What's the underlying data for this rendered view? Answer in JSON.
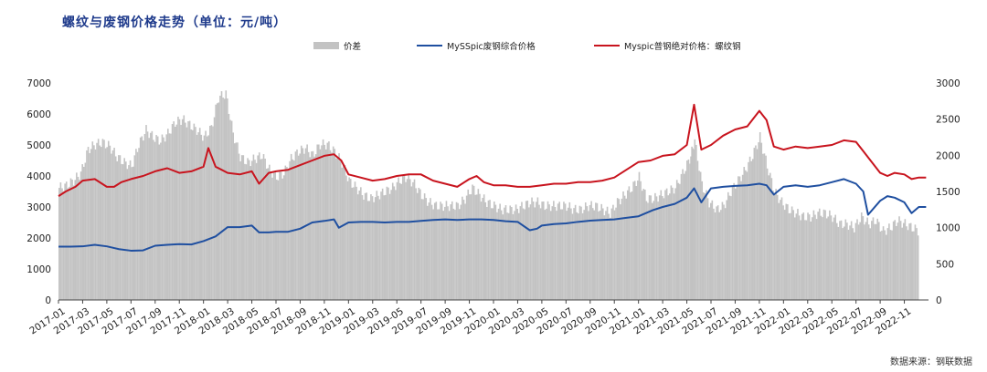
{
  "chart_data": {
    "type": "bar",
    "title": "螺纹与废钢价格走势（单位：元/吨）",
    "source": "数据来源：钢联数据",
    "x_ticks": [
      "2017-01",
      "2017-03",
      "2017-05",
      "2017-07",
      "2017-09",
      "2017-11",
      "2018-01",
      "2018-03",
      "2018-05",
      "2018-07",
      "2018-09",
      "2018-11",
      "2019-01",
      "2019-03",
      "2019-05",
      "2019-07",
      "2019-09",
      "2019-11",
      "2020-01",
      "2020-03",
      "2020-05",
      "2020-07",
      "2020-09",
      "2020-11",
      "2021-01",
      "2021-03",
      "2021-05",
      "2021-07",
      "2021-09",
      "2021-11",
      "2022-01",
      "2022-03",
      "2022-05",
      "2022-07",
      "2022-09",
      "2022-11"
    ],
    "left_axis": {
      "ylim": [
        0,
        7000
      ],
      "ticks": [
        0,
        1000,
        2000,
        3000,
        4000,
        5000,
        6000,
        7000
      ]
    },
    "right_axis": {
      "ylim": [
        0,
        3000
      ],
      "ticks": [
        0,
        500,
        1000,
        1500,
        2000,
        2500,
        3000
      ]
    },
    "legend_placement": "top",
    "series": [
      {
        "name": "价差",
        "kind": "bar",
        "axis": "right",
        "color": "#c3c3c3",
        "points": [
          [
            0,
            1550
          ],
          [
            0.3,
            1580
          ],
          [
            0.6,
            1650
          ],
          [
            0.9,
            1750
          ],
          [
            1.2,
            2080
          ],
          [
            1.5,
            2150
          ],
          [
            1.8,
            2180
          ],
          [
            2.1,
            2120
          ],
          [
            2.4,
            1980
          ],
          [
            2.7,
            1900
          ],
          [
            3.0,
            1850
          ],
          [
            3.3,
            2150
          ],
          [
            3.6,
            2350
          ],
          [
            3.9,
            2250
          ],
          [
            4.2,
            2200
          ],
          [
            4.5,
            2300
          ],
          [
            4.8,
            2450
          ],
          [
            5.1,
            2500
          ],
          [
            5.4,
            2420
          ],
          [
            5.7,
            2350
          ],
          [
            6.0,
            2250
          ],
          [
            6.3,
            2380
          ],
          [
            6.6,
            2800
          ],
          [
            6.9,
            2850
          ],
          [
            7.2,
            2300
          ],
          [
            7.5,
            1980
          ],
          [
            7.8,
            1900
          ],
          [
            8.1,
            1950
          ],
          [
            8.4,
            2000
          ],
          [
            8.7,
            1800
          ],
          [
            9.0,
            1700
          ],
          [
            9.3,
            1750
          ],
          [
            9.6,
            1950
          ],
          [
            9.9,
            2050
          ],
          [
            10.2,
            2100
          ],
          [
            10.5,
            2000
          ],
          [
            10.8,
            2150
          ],
          [
            11.1,
            2150
          ],
          [
            11.4,
            2050
          ],
          [
            11.7,
            1900
          ],
          [
            12.0,
            1650
          ],
          [
            12.3,
            1550
          ],
          [
            12.6,
            1450
          ],
          [
            12.9,
            1400
          ],
          [
            13.2,
            1450
          ],
          [
            13.5,
            1500
          ],
          [
            13.8,
            1550
          ],
          [
            14.1,
            1650
          ],
          [
            14.4,
            1700
          ],
          [
            14.7,
            1600
          ],
          [
            15.0,
            1450
          ],
          [
            15.3,
            1350
          ],
          [
            15.6,
            1300
          ],
          [
            15.9,
            1300
          ],
          [
            16.2,
            1300
          ],
          [
            16.5,
            1300
          ],
          [
            16.8,
            1400
          ],
          [
            17.1,
            1550
          ],
          [
            17.4,
            1450
          ],
          [
            17.7,
            1350
          ],
          [
            18.0,
            1300
          ],
          [
            18.3,
            1250
          ],
          [
            18.6,
            1250
          ],
          [
            18.9,
            1250
          ],
          [
            19.2,
            1300
          ],
          [
            19.5,
            1350
          ],
          [
            19.8,
            1350
          ],
          [
            20.1,
            1300
          ],
          [
            20.4,
            1300
          ],
          [
            20.7,
            1300
          ],
          [
            21.0,
            1300
          ],
          [
            21.3,
            1250
          ],
          [
            21.6,
            1250
          ],
          [
            21.9,
            1300
          ],
          [
            22.2,
            1300
          ],
          [
            22.5,
            1250
          ],
          [
            22.8,
            1200
          ],
          [
            23.1,
            1350
          ],
          [
            23.4,
            1450
          ],
          [
            23.7,
            1550
          ],
          [
            24.0,
            1700
          ],
          [
            24.3,
            1400
          ],
          [
            24.6,
            1400
          ],
          [
            24.9,
            1450
          ],
          [
            25.2,
            1500
          ],
          [
            25.5,
            1550
          ],
          [
            25.8,
            1750
          ],
          [
            26.1,
            1950
          ],
          [
            26.3,
            2200
          ],
          [
            26.6,
            1600
          ],
          [
            26.9,
            1350
          ],
          [
            27.2,
            1250
          ],
          [
            27.5,
            1300
          ],
          [
            27.8,
            1500
          ],
          [
            28.1,
            1650
          ],
          [
            28.4,
            1800
          ],
          [
            28.7,
            2000
          ],
          [
            29.0,
            2250
          ],
          [
            29.3,
            1850
          ],
          [
            29.6,
            1500
          ],
          [
            29.9,
            1350
          ],
          [
            30.2,
            1250
          ],
          [
            30.5,
            1200
          ],
          [
            30.8,
            1150
          ],
          [
            31.1,
            1150
          ],
          [
            31.4,
            1200
          ],
          [
            31.7,
            1200
          ],
          [
            32.0,
            1150
          ],
          [
            32.3,
            1050
          ],
          [
            32.6,
            1050
          ],
          [
            32.9,
            1000
          ],
          [
            33.2,
            1150
          ],
          [
            33.5,
            1050
          ],
          [
            33.8,
            1100
          ],
          [
            34.1,
            950
          ],
          [
            34.4,
            1000
          ],
          [
            34.7,
            1100
          ],
          [
            35.0,
            1050
          ],
          [
            35.3,
            1000
          ],
          [
            35.6,
            950
          ]
        ]
      },
      {
        "name": "MySSpic废钢综合价格",
        "kind": "line",
        "axis": "left",
        "color": "#1f4fa0",
        "points": [
          [
            0,
            1720
          ],
          [
            0.5,
            1720
          ],
          [
            1,
            1730
          ],
          [
            1.5,
            1780
          ],
          [
            2,
            1730
          ],
          [
            2.5,
            1640
          ],
          [
            3,
            1590
          ],
          [
            3.5,
            1600
          ],
          [
            4,
            1750
          ],
          [
            4.5,
            1780
          ],
          [
            5,
            1800
          ],
          [
            5.5,
            1790
          ],
          [
            6,
            1900
          ],
          [
            6.5,
            2050
          ],
          [
            7,
            2350
          ],
          [
            7.5,
            2350
          ],
          [
            8,
            2400
          ],
          [
            8.3,
            2180
          ],
          [
            8.7,
            2180
          ],
          [
            9,
            2200
          ],
          [
            9.5,
            2200
          ],
          [
            10,
            2300
          ],
          [
            10.5,
            2500
          ],
          [
            11,
            2550
          ],
          [
            11.4,
            2600
          ],
          [
            11.6,
            2330
          ],
          [
            12,
            2500
          ],
          [
            12.5,
            2520
          ],
          [
            13,
            2520
          ],
          [
            13.5,
            2500
          ],
          [
            14,
            2520
          ],
          [
            14.5,
            2520
          ],
          [
            15,
            2550
          ],
          [
            15.5,
            2580
          ],
          [
            16,
            2600
          ],
          [
            16.5,
            2580
          ],
          [
            17,
            2600
          ],
          [
            17.5,
            2600
          ],
          [
            18,
            2580
          ],
          [
            18.5,
            2540
          ],
          [
            19,
            2520
          ],
          [
            19.5,
            2250
          ],
          [
            19.8,
            2300
          ],
          [
            20,
            2400
          ],
          [
            20.5,
            2450
          ],
          [
            21,
            2470
          ],
          [
            21.5,
            2520
          ],
          [
            22,
            2560
          ],
          [
            22.5,
            2580
          ],
          [
            23,
            2600
          ],
          [
            23.5,
            2650
          ],
          [
            24,
            2700
          ],
          [
            24.3,
            2800
          ],
          [
            24.6,
            2900
          ],
          [
            25,
            3000
          ],
          [
            25.5,
            3100
          ],
          [
            26,
            3300
          ],
          [
            26.3,
            3600
          ],
          [
            26.6,
            3150
          ],
          [
            27,
            3600
          ],
          [
            27.5,
            3650
          ],
          [
            28,
            3680
          ],
          [
            28.5,
            3700
          ],
          [
            29,
            3750
          ],
          [
            29.3,
            3700
          ],
          [
            29.6,
            3400
          ],
          [
            30,
            3650
          ],
          [
            30.5,
            3700
          ],
          [
            31,
            3650
          ],
          [
            31.5,
            3700
          ],
          [
            32,
            3800
          ],
          [
            32.5,
            3900
          ],
          [
            33,
            3750
          ],
          [
            33.3,
            3500
          ],
          [
            33.5,
            2750
          ],
          [
            34,
            3200
          ],
          [
            34.3,
            3350
          ],
          [
            34.6,
            3300
          ],
          [
            35,
            3150
          ],
          [
            35.3,
            2800
          ],
          [
            35.6,
            3000
          ],
          [
            35.9,
            3000
          ]
        ]
      },
      {
        "name": "Myspic普钢绝对价格：螺纹钢",
        "kind": "line",
        "axis": "left",
        "color": "#c8141e",
        "points": [
          [
            0,
            3350
          ],
          [
            0.3,
            3500
          ],
          [
            0.7,
            3650
          ],
          [
            1,
            3850
          ],
          [
            1.5,
            3900
          ],
          [
            2,
            3650
          ],
          [
            2.3,
            3650
          ],
          [
            2.6,
            3800
          ],
          [
            3,
            3900
          ],
          [
            3.5,
            4000
          ],
          [
            4,
            4150
          ],
          [
            4.5,
            4250
          ],
          [
            5,
            4100
          ],
          [
            5.5,
            4150
          ],
          [
            6,
            4300
          ],
          [
            6.2,
            4900
          ],
          [
            6.5,
            4300
          ],
          [
            7,
            4100
          ],
          [
            7.5,
            4050
          ],
          [
            8,
            4150
          ],
          [
            8.3,
            3750
          ],
          [
            8.7,
            4100
          ],
          [
            9,
            4150
          ],
          [
            9.5,
            4200
          ],
          [
            10,
            4350
          ],
          [
            10.5,
            4500
          ],
          [
            11,
            4650
          ],
          [
            11.4,
            4700
          ],
          [
            11.7,
            4500
          ],
          [
            12,
            4050
          ],
          [
            12.5,
            3950
          ],
          [
            13,
            3850
          ],
          [
            13.5,
            3900
          ],
          [
            14,
            4000
          ],
          [
            14.5,
            4050
          ],
          [
            15,
            4050
          ],
          [
            15.5,
            3850
          ],
          [
            16,
            3750
          ],
          [
            16.5,
            3650
          ],
          [
            17,
            3900
          ],
          [
            17.3,
            4000
          ],
          [
            17.6,
            3800
          ],
          [
            18,
            3700
          ],
          [
            18.5,
            3700
          ],
          [
            19,
            3650
          ],
          [
            19.5,
            3650
          ],
          [
            20,
            3700
          ],
          [
            20.5,
            3750
          ],
          [
            21,
            3750
          ],
          [
            21.5,
            3800
          ],
          [
            22,
            3800
          ],
          [
            22.5,
            3850
          ],
          [
            23,
            3950
          ],
          [
            23.5,
            4200
          ],
          [
            24,
            4450
          ],
          [
            24.5,
            4500
          ],
          [
            25,
            4650
          ],
          [
            25.5,
            4700
          ],
          [
            26,
            5000
          ],
          [
            26.3,
            6300
          ],
          [
            26.6,
            4850
          ],
          [
            27,
            5000
          ],
          [
            27.5,
            5300
          ],
          [
            28,
            5500
          ],
          [
            28.5,
            5600
          ],
          [
            29,
            6100
          ],
          [
            29.3,
            5800
          ],
          [
            29.6,
            4950
          ],
          [
            30,
            4850
          ],
          [
            30.5,
            4950
          ],
          [
            31,
            4900
          ],
          [
            31.5,
            4950
          ],
          [
            32,
            5000
          ],
          [
            32.5,
            5150
          ],
          [
            33,
            5100
          ],
          [
            33.3,
            4800
          ],
          [
            33.6,
            4500
          ],
          [
            34,
            4100
          ],
          [
            34.3,
            4000
          ],
          [
            34.6,
            4100
          ],
          [
            35,
            4050
          ],
          [
            35.3,
            3900
          ],
          [
            35.6,
            3950
          ],
          [
            35.9,
            3950
          ]
        ]
      }
    ]
  }
}
